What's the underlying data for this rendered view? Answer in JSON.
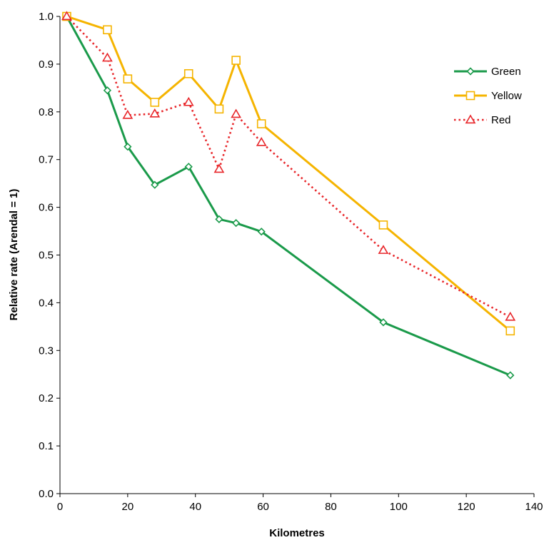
{
  "chart_data": {
    "type": "line",
    "title": "",
    "xlabel": "Kilometres",
    "ylabel": "Relative rate (Arendal = 1)",
    "xlim": [
      0,
      140
    ],
    "ylim": [
      0,
      1.0
    ],
    "xticks": [
      0,
      20,
      40,
      60,
      80,
      100,
      120,
      140
    ],
    "yticks": [
      0.0,
      0.1,
      0.2,
      0.3,
      0.4,
      0.5,
      0.6,
      0.7,
      0.8,
      0.9,
      1.0
    ],
    "grid": false,
    "legend": "right",
    "series": [
      {
        "name": "Green",
        "color": "#1a9a4a",
        "line_style": "solid",
        "marker": "diamond",
        "x": [
          2,
          14,
          20,
          28,
          38,
          47,
          52,
          59.5,
          95.5,
          133
        ],
        "y": [
          1.0,
          0.845,
          0.727,
          0.647,
          0.685,
          0.575,
          0.567,
          0.549,
          0.359,
          0.248
        ]
      },
      {
        "name": "Yellow",
        "color": "#f5b400",
        "line_style": "solid",
        "marker": "square",
        "x": [
          2,
          14,
          20,
          28,
          38,
          47,
          52,
          59.5,
          95.5,
          133
        ],
        "y": [
          1.0,
          0.972,
          0.869,
          0.82,
          0.88,
          0.806,
          0.908,
          0.775,
          0.563,
          0.341
        ]
      },
      {
        "name": "Red",
        "color": "#e8262a",
        "line_style": "dotted",
        "marker": "triangle",
        "x": [
          2,
          14,
          20,
          28,
          38,
          47,
          52,
          59.5,
          95.5,
          133
        ],
        "y": [
          1.0,
          0.913,
          0.793,
          0.796,
          0.82,
          0.68,
          0.795,
          0.736,
          0.51,
          0.37
        ]
      }
    ]
  }
}
